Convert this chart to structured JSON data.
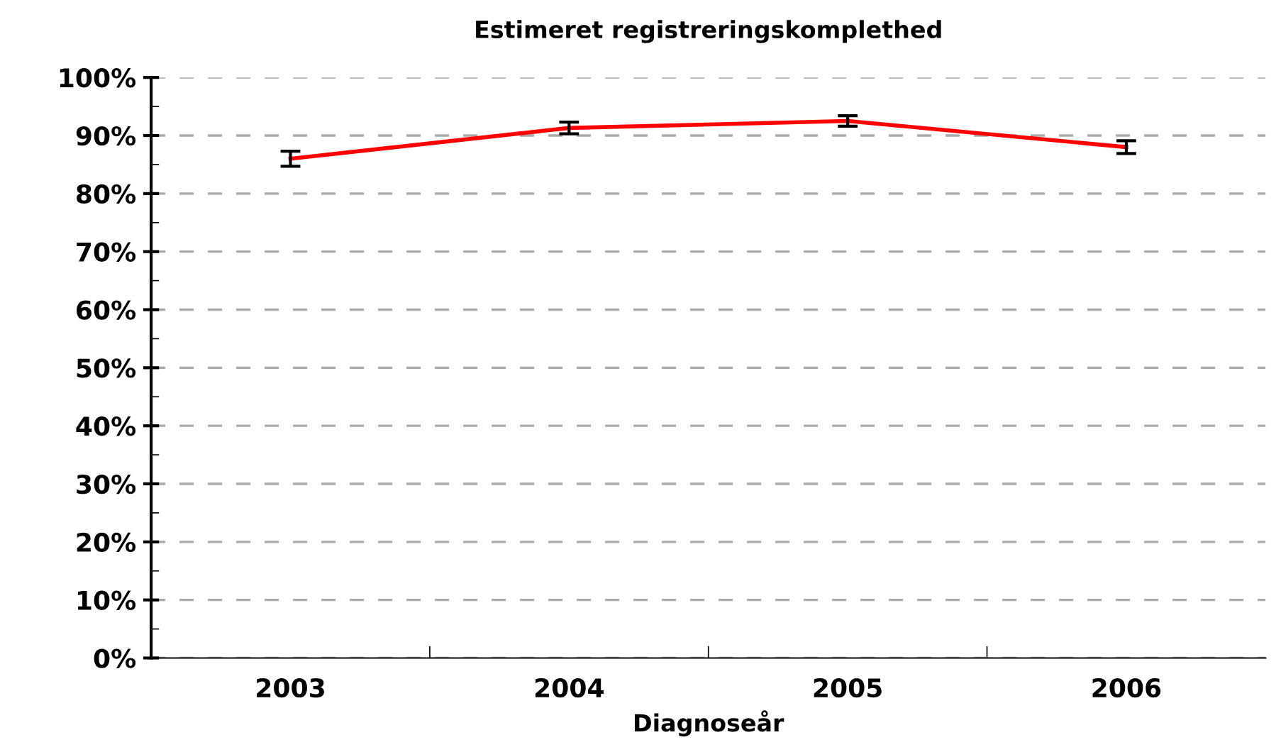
{
  "chart_data": {
    "type": "line",
    "title": "Estimeret registreringskomplethed",
    "xlabel": "Diagnoseår",
    "categories": [
      "2003",
      "2004",
      "2005",
      "2006"
    ],
    "series": [
      {
        "color": "#ff0000",
        "values": [
          86.0,
          91.3,
          92.5,
          88.0
        ],
        "errors": [
          1.3,
          1.0,
          0.9,
          1.1
        ]
      }
    ],
    "ylim": [
      0,
      100
    ],
    "yticks": [
      {
        "value": 0,
        "label": "0%"
      },
      {
        "value": 10,
        "label": "10%"
      },
      {
        "value": 20,
        "label": "20%"
      },
      {
        "value": 30,
        "label": "30%"
      },
      {
        "value": 40,
        "label": "40%"
      },
      {
        "value": 50,
        "label": "50%"
      },
      {
        "value": 60,
        "label": "60%"
      },
      {
        "value": 70,
        "label": "70%"
      },
      {
        "value": 80,
        "label": "80%"
      },
      {
        "value": 90,
        "label": "90%"
      },
      {
        "value": 100,
        "label": "100%"
      }
    ],
    "grid": "y",
    "marker": "none",
    "line_style": "solid"
  }
}
